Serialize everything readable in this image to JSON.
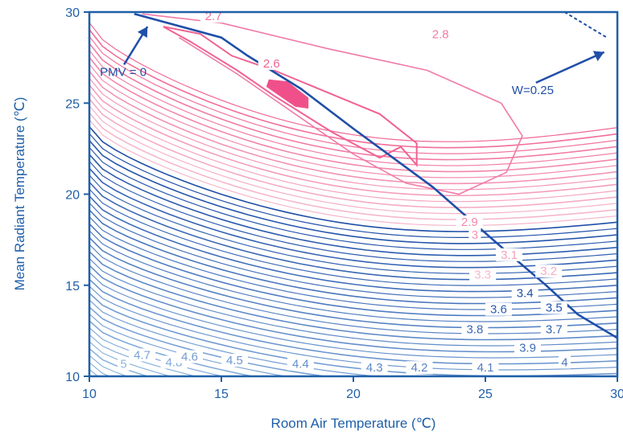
{
  "chart_data": {
    "type": "contour",
    "xlabel": "Room Air Temperature (℃)",
    "ylabel": "Mean Radiant Temperature (℃)",
    "xlim": [
      10,
      30
    ],
    "ylim": [
      10,
      30
    ],
    "x_ticks": [
      "10",
      "15",
      "20",
      "25",
      "30"
    ],
    "y_ticks": [
      "10",
      "15",
      "20",
      "25",
      "30"
    ],
    "grid": false,
    "colors": {
      "low": "#1f4fa8",
      "high": "#f06292",
      "axis": "#1f5fa8",
      "pmv_line": "#1f4fa8",
      "min_region": "#f0508a"
    },
    "contour_levels": [
      {
        "level": 5,
        "label": "5",
        "at": [
          11.3,
          10.5
        ]
      },
      {
        "level": 4.8,
        "label": "4.8",
        "at": [
          13.2,
          10.6
        ]
      },
      {
        "level": 4.7,
        "label": "4.7",
        "at": [
          12.0,
          11.0
        ]
      },
      {
        "level": 4.6,
        "label": "4.6",
        "at": [
          13.8,
          10.9
        ]
      },
      {
        "level": 4.5,
        "label": "4.5",
        "at": [
          15.5,
          10.7
        ]
      },
      {
        "level": 4.4,
        "label": "4.4",
        "at": [
          18.0,
          10.5
        ]
      },
      {
        "level": 4.3,
        "label": "4.3",
        "at": [
          20.8,
          10.3
        ]
      },
      {
        "level": 4.2,
        "label": "4.2",
        "at": [
          22.5,
          10.3
        ]
      },
      {
        "level": 4.1,
        "label": "4.1",
        "at": [
          25.0,
          10.3
        ]
      },
      {
        "level": 4,
        "label": "4",
        "at": [
          28.0,
          10.6
        ]
      },
      {
        "level": 3.9,
        "label": "3.9",
        "at": [
          26.6,
          11.4
        ]
      },
      {
        "level": 3.8,
        "label": "3.8",
        "at": [
          24.6,
          12.4
        ]
      },
      {
        "level": 3.7,
        "label": "3.7",
        "at": [
          27.6,
          12.4
        ]
      },
      {
        "level": 3.6,
        "label": "3.6",
        "at": [
          25.5,
          13.5
        ]
      },
      {
        "level": 3.5,
        "label": "3.5",
        "at": [
          27.6,
          13.6
        ]
      },
      {
        "level": 3.4,
        "label": "3.4",
        "at": [
          26.5,
          14.4
        ]
      },
      {
        "level": 3.3,
        "label": "3.3",
        "at": [
          24.9,
          15.4
        ]
      },
      {
        "level": 3.2,
        "label": "3.2",
        "at": [
          27.4,
          15.6
        ]
      },
      {
        "level": 3.1,
        "label": "3.1",
        "at": [
          25.9,
          16.5
        ]
      },
      {
        "level": 3,
        "label": "3",
        "at": [
          24.6,
          17.6
        ]
      },
      {
        "level": 2.9,
        "label": "2.9",
        "at": [
          24.4,
          18.3
        ]
      },
      {
        "level": 2.8,
        "label": "2.8",
        "at": [
          23.3,
          28.6
        ]
      },
      {
        "level": 2.7,
        "label": "2.7",
        "at": [
          14.7,
          29.6
        ]
      },
      {
        "level": 2.6,
        "label": "2.6",
        "at": [
          16.9,
          27.0
        ]
      }
    ],
    "annotations": [
      {
        "label": "PMV = 0",
        "text_at": [
          10.4,
          26.5
        ],
        "arrow_to": [
          12.2,
          29.2
        ]
      },
      {
        "label": "W=0.25",
        "text_at": [
          26.0,
          25.5
        ],
        "arrow_to": [
          29.5,
          27.8
        ]
      }
    ],
    "pmv_zero_line": [
      [
        11.7,
        29.9
      ],
      [
        15.0,
        28.6
      ],
      [
        16.0,
        27.6
      ],
      [
        18.0,
        25.8
      ],
      [
        20.0,
        23.6
      ],
      [
        23.0,
        20.4
      ],
      [
        26.0,
        16.6
      ],
      [
        27.3,
        15.0
      ],
      [
        28.5,
        13.4
      ],
      [
        30.0,
        12.1
      ]
    ],
    "w_line": [
      [
        28.0,
        30.0
      ],
      [
        29.6,
        28.6
      ]
    ]
  }
}
